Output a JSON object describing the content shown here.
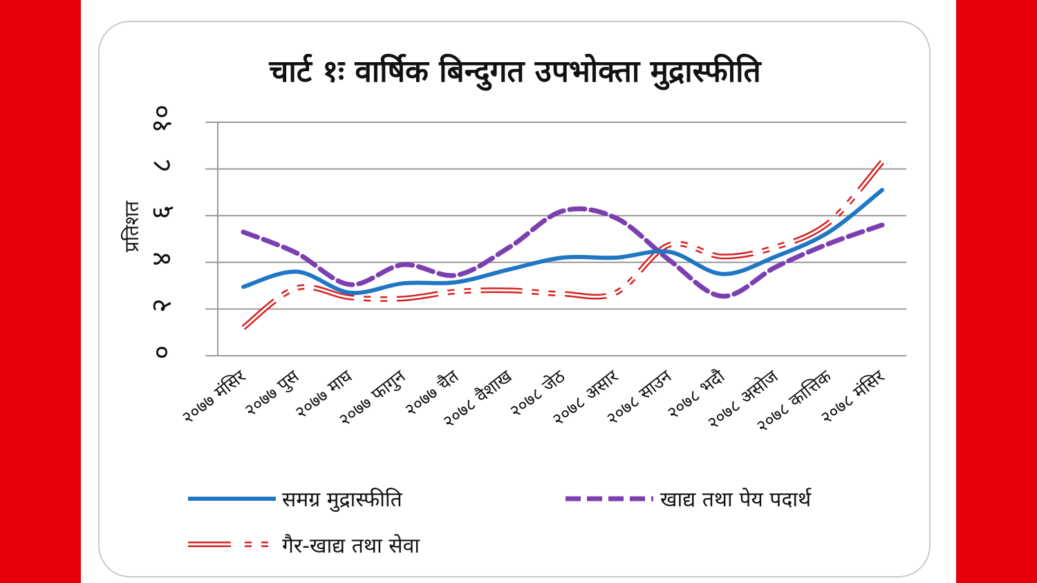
{
  "chart_data": {
    "type": "line",
    "title": "चार्ट १ः वार्षिक बिन्दुगत उपभोक्ता मुद्रास्फीति",
    "xlabel": "",
    "ylabel": "प्रतिशत",
    "ylim": [
      0,
      10
    ],
    "yticks": [
      "०",
      "२",
      "४",
      "६",
      "८",
      "१०"
    ],
    "ytick_values": [
      0,
      2,
      4,
      6,
      8,
      10
    ],
    "grid": true,
    "legend_position": "bottom",
    "categories": [
      "२०७७ मंसिर",
      "२०७७ पुस",
      "२०७७ माघ",
      "२०७७ फागुन",
      "२०७७ चैत",
      "२०७८ वैशाख",
      "२०७८ जेठ",
      "२०७८ असार",
      "२०७८ साउन",
      "२०७८ भदौ",
      "२०७८ असोज",
      "२०७८ कात्तिक",
      "२०७८ मंसिर"
    ],
    "series": [
      {
        "name": "समग्र मुद्रास्फीति",
        "color": "#1f77c4",
        "style": "solid",
        "values": [
          2.95,
          3.6,
          2.7,
          3.1,
          3.15,
          3.7,
          4.2,
          4.2,
          4.45,
          3.5,
          4.25,
          5.3,
          7.1
        ]
      },
      {
        "name": "खाद्य तथा पेय पदार्थ",
        "color": "#7b3fb0",
        "style": "dashed",
        "values": [
          5.3,
          4.4,
          3.05,
          3.9,
          3.45,
          4.65,
          6.2,
          5.9,
          4.1,
          2.55,
          3.8,
          4.8,
          5.6
        ]
      },
      {
        "name": "गैर-खाद्य तथा सेवा",
        "color": "#d62020",
        "style": "double",
        "values": [
          1.2,
          2.9,
          2.5,
          2.45,
          2.75,
          2.8,
          2.65,
          2.7,
          4.75,
          4.25,
          4.65,
          5.7,
          8.3
        ]
      }
    ]
  }
}
